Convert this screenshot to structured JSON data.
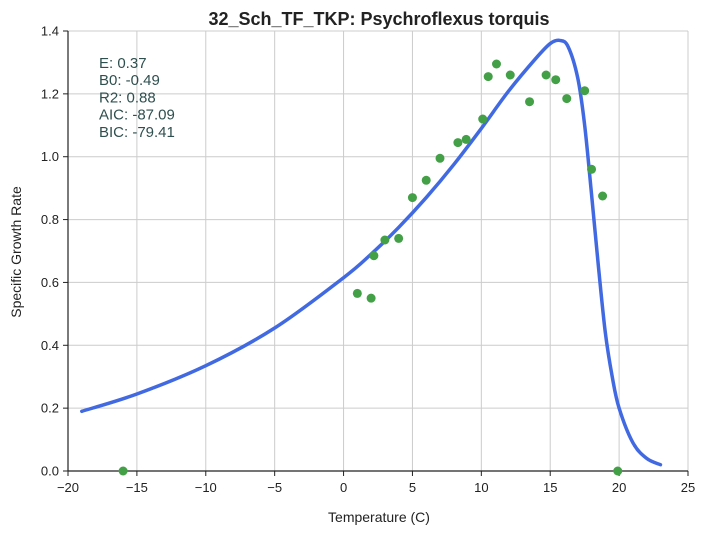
{
  "chart_data": {
    "type": "scatter",
    "title": "32_Sch_TF_TKP: Psychroflexus torquis",
    "xlabel": "Temperature (C)",
    "ylabel": "Specific Growth Rate",
    "xlim": [
      -20,
      25
    ],
    "ylim": [
      0.0,
      1.4
    ],
    "x_ticks": [
      -20,
      -15,
      -10,
      -5,
      0,
      5,
      10,
      15,
      20,
      25
    ],
    "y_ticks": [
      0.0,
      0.2,
      0.4,
      0.6,
      0.8,
      1.0,
      1.2,
      1.4
    ],
    "x_tick_labels": [
      "−20",
      "−15",
      "−10",
      "−5",
      "0",
      "5",
      "10",
      "15",
      "20",
      "25"
    ],
    "y_tick_labels": [
      "0.0",
      "0.2",
      "0.4",
      "0.6",
      "0.8",
      "1.0",
      "1.2",
      "1.4"
    ],
    "grid": true,
    "series": [
      {
        "kind": "scatter",
        "color": "#43a047",
        "points": [
          [
            -16.0,
            0.0
          ],
          [
            1.0,
            0.565
          ],
          [
            2.0,
            0.55
          ],
          [
            2.2,
            0.685
          ],
          [
            3.0,
            0.735
          ],
          [
            4.0,
            0.74
          ],
          [
            5.0,
            0.87
          ],
          [
            6.0,
            0.925
          ],
          [
            7.0,
            0.995
          ],
          [
            8.3,
            1.045
          ],
          [
            8.9,
            1.055
          ],
          [
            10.1,
            1.12
          ],
          [
            10.5,
            1.255
          ],
          [
            11.1,
            1.295
          ],
          [
            12.1,
            1.26
          ],
          [
            13.5,
            1.175
          ],
          [
            14.7,
            1.26
          ],
          [
            15.4,
            1.245
          ],
          [
            16.2,
            1.185
          ],
          [
            17.5,
            1.21
          ],
          [
            18.0,
            0.96
          ],
          [
            18.8,
            0.875
          ],
          [
            19.9,
            0.0
          ]
        ]
      },
      {
        "kind": "line",
        "color": "#4169e1",
        "points": [
          [
            -19.0,
            0.19
          ],
          [
            -15.0,
            0.245
          ],
          [
            -10.0,
            0.335
          ],
          [
            -5.0,
            0.455
          ],
          [
            0.0,
            0.615
          ],
          [
            2.0,
            0.69
          ],
          [
            4.0,
            0.775
          ],
          [
            6.0,
            0.87
          ],
          [
            8.0,
            0.975
          ],
          [
            10.0,
            1.09
          ],
          [
            12.0,
            1.21
          ],
          [
            14.0,
            1.315
          ],
          [
            15.0,
            1.36
          ],
          [
            15.7,
            1.37
          ],
          [
            16.3,
            1.35
          ],
          [
            17.0,
            1.25
          ],
          [
            17.5,
            1.1
          ],
          [
            18.0,
            0.88
          ],
          [
            18.5,
            0.65
          ],
          [
            19.0,
            0.44
          ],
          [
            19.5,
            0.3
          ],
          [
            20.0,
            0.2
          ],
          [
            21.0,
            0.09
          ],
          [
            22.0,
            0.04
          ],
          [
            23.0,
            0.02
          ]
        ]
      }
    ],
    "annotations": [
      {
        "label": "E:",
        "value": "0.37"
      },
      {
        "label": "B0:",
        "value": "-0.49"
      },
      {
        "label": "R2:",
        "value": "0.88"
      },
      {
        "label": "AIC:",
        "value": "-87.09"
      },
      {
        "label": "BIC:",
        "value": "-79.41"
      }
    ]
  }
}
